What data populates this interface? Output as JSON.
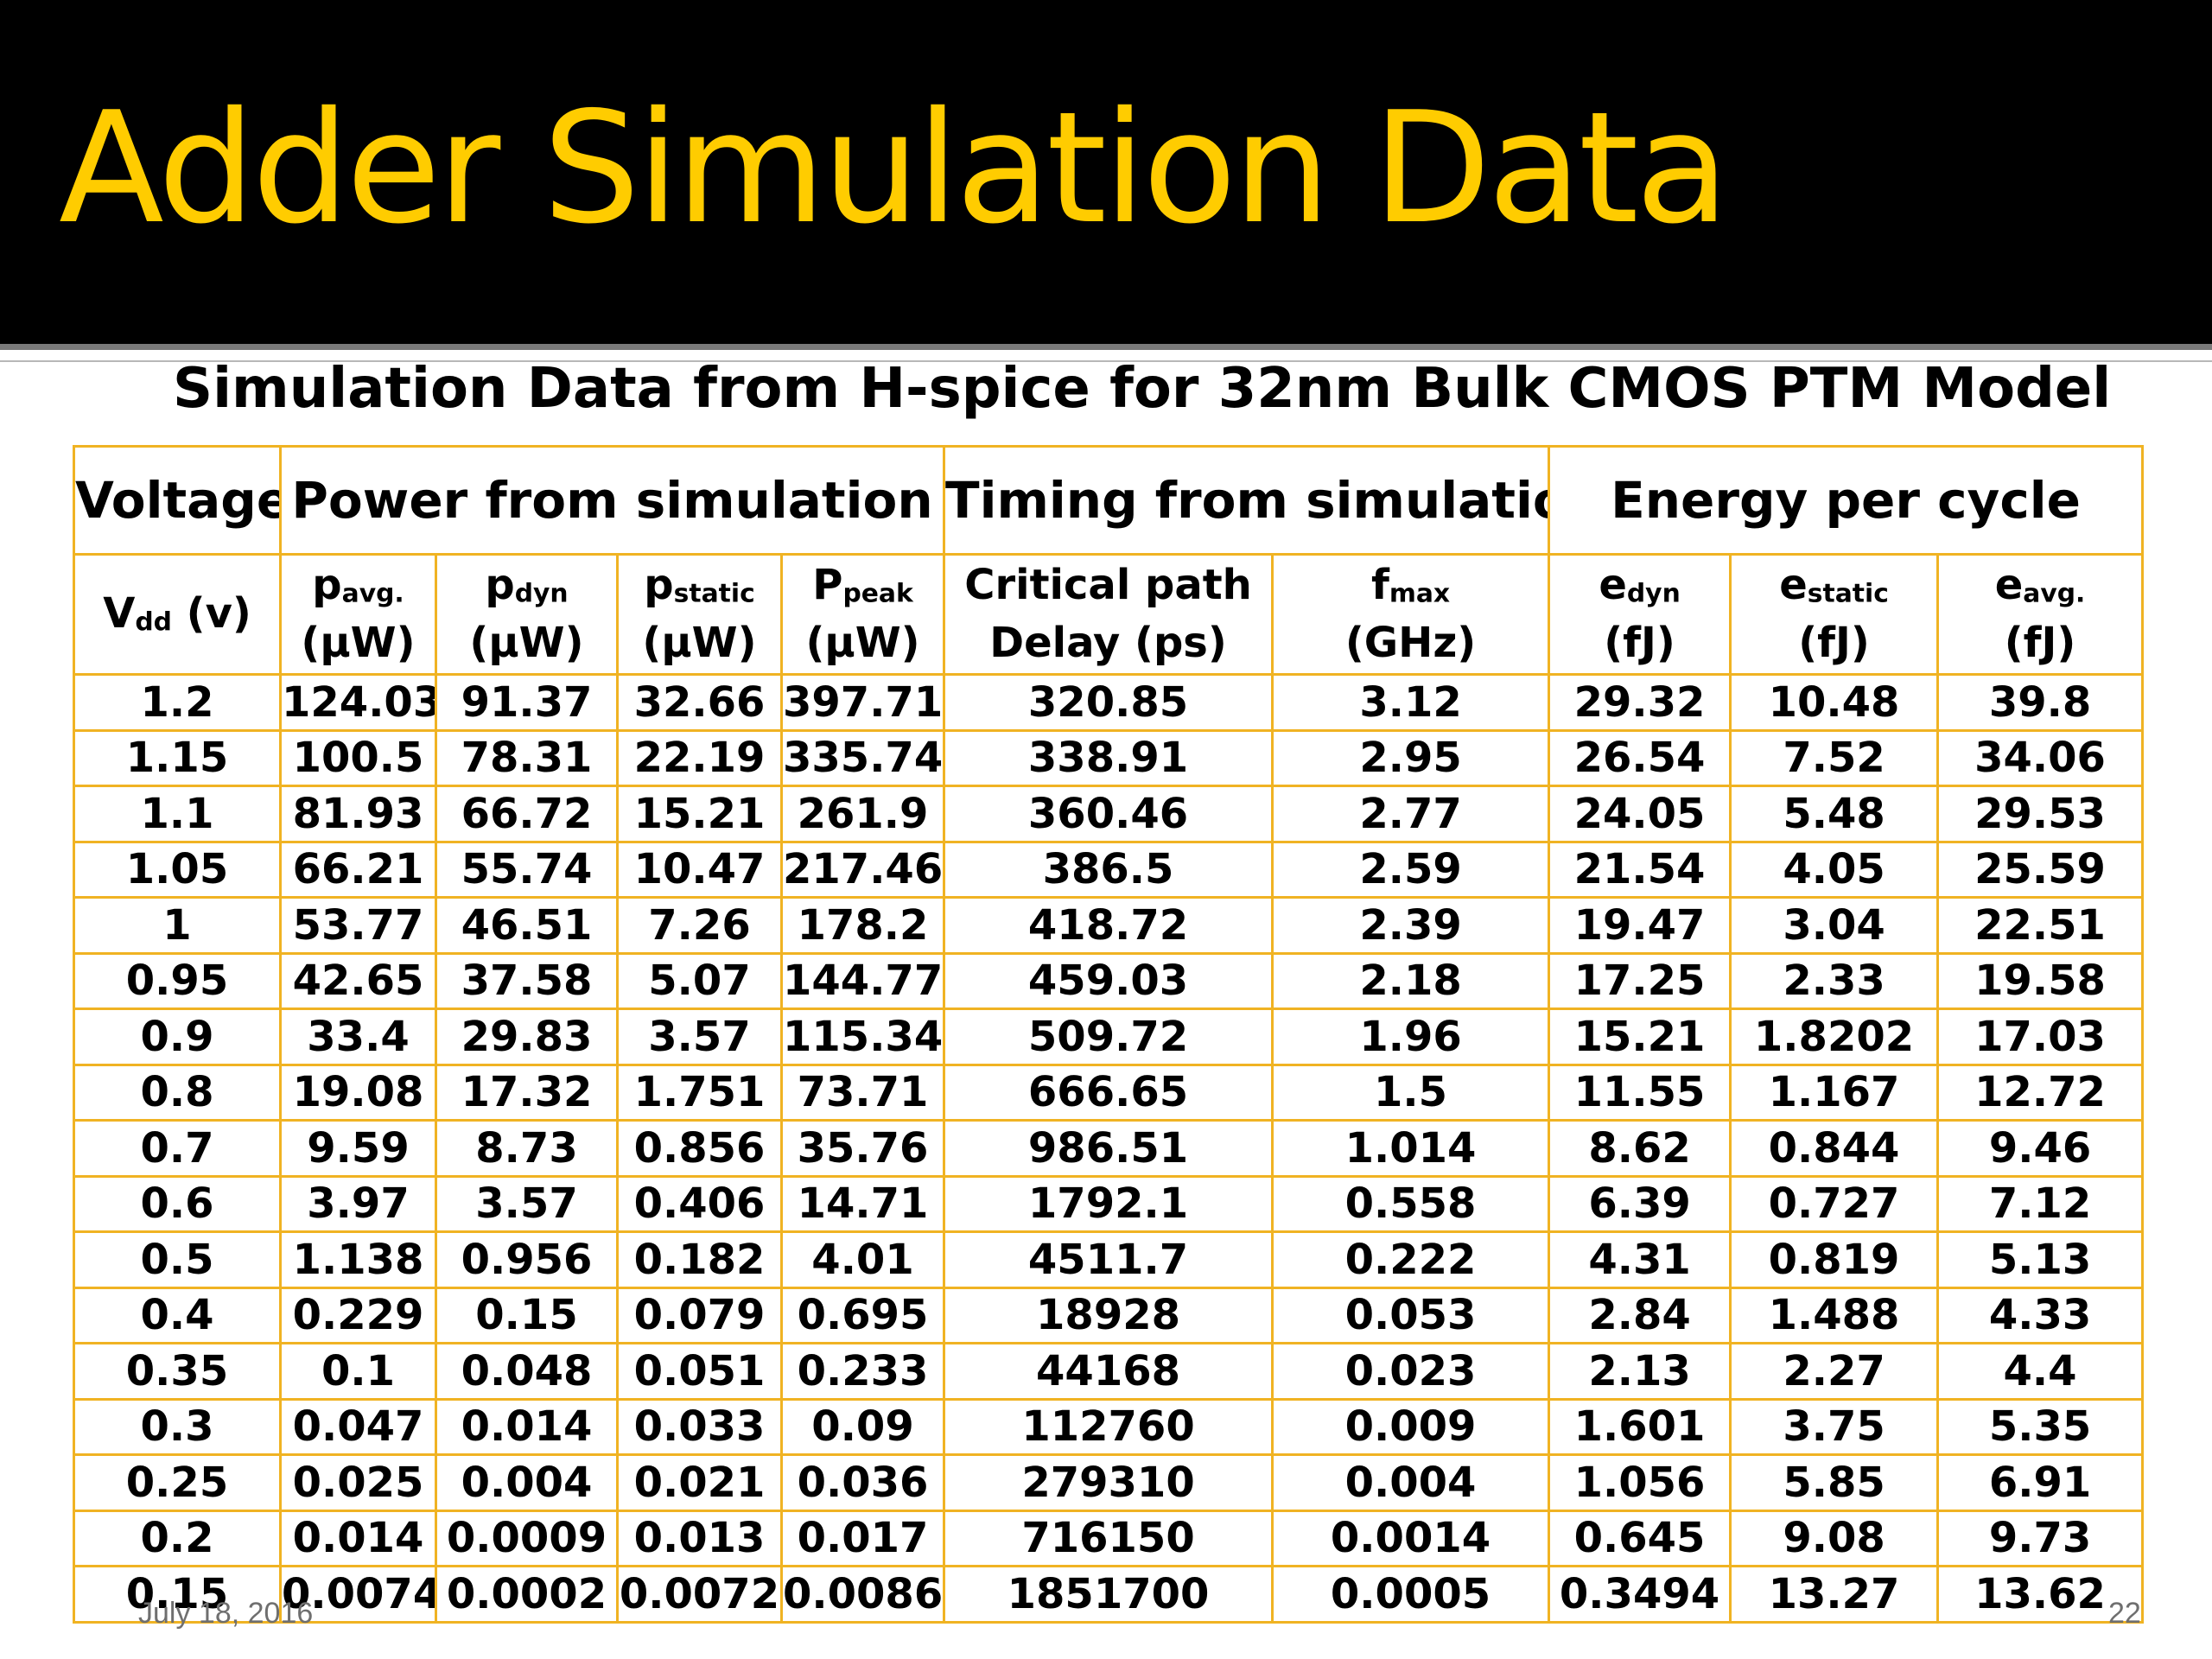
{
  "slide": {
    "title": "Adder Simulation Data",
    "subtitle": "Simulation Data from H-spice for 32nm Bulk CMOS PTM Model",
    "footer": {
      "date": "July 18, 2016",
      "page": "22"
    },
    "colors": {
      "header_bg": "#000000",
      "title": "#FFCC00",
      "table_border": "#F0B323"
    }
  },
  "table": {
    "groups": {
      "voltage": "Voltage",
      "power": "Power from simulation",
      "timing": "Timing from simulation",
      "energy": "Energy per cycle"
    },
    "columns": {
      "vdd": {
        "sym": "V",
        "sub": "dd",
        "rest": " (v)"
      },
      "pavg": {
        "sym": "p",
        "sub": "avg.",
        "unit": "(µW)"
      },
      "pdyn": {
        "sym": "p",
        "sub": "dyn",
        "unit": "(µW)"
      },
      "pstatic": {
        "sym": "p",
        "sub": "static",
        "unit": "(µW)"
      },
      "ppeak": {
        "sym": "P",
        "sub": "peak",
        "unit": "(µW)"
      },
      "delay": {
        "line1": "Critical path",
        "line2": "Delay (ps)"
      },
      "fmax": {
        "sym": "f",
        "sub": "max",
        "unit": "(GHz)"
      },
      "edyn": {
        "sym": "e",
        "sub": "dyn",
        "unit": "(fJ)"
      },
      "estatic": {
        "sym": "e",
        "sub": "static",
        "unit": "(fJ)"
      },
      "eavg": {
        "sym": "e",
        "sub": "avg.",
        "unit": "(fJ)"
      }
    },
    "rows": [
      [
        "1.2",
        "124.03",
        "91.37",
        "32.66",
        "397.71",
        "320.85",
        "3.12",
        "29.32",
        "10.48",
        "39.8"
      ],
      [
        "1.15",
        "100.5",
        "78.31",
        "22.19",
        "335.74",
        "338.91",
        "2.95",
        "26.54",
        "7.52",
        "34.06"
      ],
      [
        "1.1",
        "81.93",
        "66.72",
        "15.21",
        "261.9",
        "360.46",
        "2.77",
        "24.05",
        "5.48",
        "29.53"
      ],
      [
        "1.05",
        "66.21",
        "55.74",
        "10.47",
        "217.46",
        "386.5",
        "2.59",
        "21.54",
        "4.05",
        "25.59"
      ],
      [
        "1",
        "53.77",
        "46.51",
        "7.26",
        "178.2",
        "418.72",
        "2.39",
        "19.47",
        "3.04",
        "22.51"
      ],
      [
        "0.95",
        "42.65",
        "37.58",
        "5.07",
        "144.77",
        "459.03",
        "2.18",
        "17.25",
        "2.33",
        "19.58"
      ],
      [
        "0.9",
        "33.4",
        "29.83",
        "3.57",
        "115.34",
        "509.72",
        "1.96",
        "15.21",
        "1.8202",
        "17.03"
      ],
      [
        "0.8",
        "19.08",
        "17.32",
        "1.751",
        "73.71",
        "666.65",
        "1.5",
        "11.55",
        "1.167",
        "12.72"
      ],
      [
        "0.7",
        "9.59",
        "8.73",
        "0.856",
        "35.76",
        "986.51",
        "1.014",
        "8.62",
        "0.844",
        "9.46"
      ],
      [
        "0.6",
        "3.97",
        "3.57",
        "0.406",
        "14.71",
        "1792.1",
        "0.558",
        "6.39",
        "0.727",
        "7.12"
      ],
      [
        "0.5",
        "1.138",
        "0.956",
        "0.182",
        "4.01",
        "4511.7",
        "0.222",
        "4.31",
        "0.819",
        "5.13"
      ],
      [
        "0.4",
        "0.229",
        "0.15",
        "0.079",
        "0.695",
        "18928",
        "0.053",
        "2.84",
        "1.488",
        "4.33"
      ],
      [
        "0.35",
        "0.1",
        "0.048",
        "0.051",
        "0.233",
        "44168",
        "0.023",
        "2.13",
        "2.27",
        "4.4"
      ],
      [
        "0.3",
        "0.047",
        "0.014",
        "0.033",
        "0.09",
        "112760",
        "0.009",
        "1.601",
        "3.75",
        "5.35"
      ],
      [
        "0.25",
        "0.025",
        "0.004",
        "0.021",
        "0.036",
        "279310",
        "0.004",
        "1.056",
        "5.85",
        "6.91"
      ],
      [
        "0.2",
        "0.014",
        "0.0009",
        "0.013",
        "0.017",
        "716150",
        "0.0014",
        "0.645",
        "9.08",
        "9.73"
      ],
      [
        "0.15",
        "0.0074",
        "0.0002",
        "0.0072",
        "0.0086",
        "1851700",
        "0.0005",
        "0.3494",
        "13.27",
        "13.62"
      ]
    ]
  }
}
